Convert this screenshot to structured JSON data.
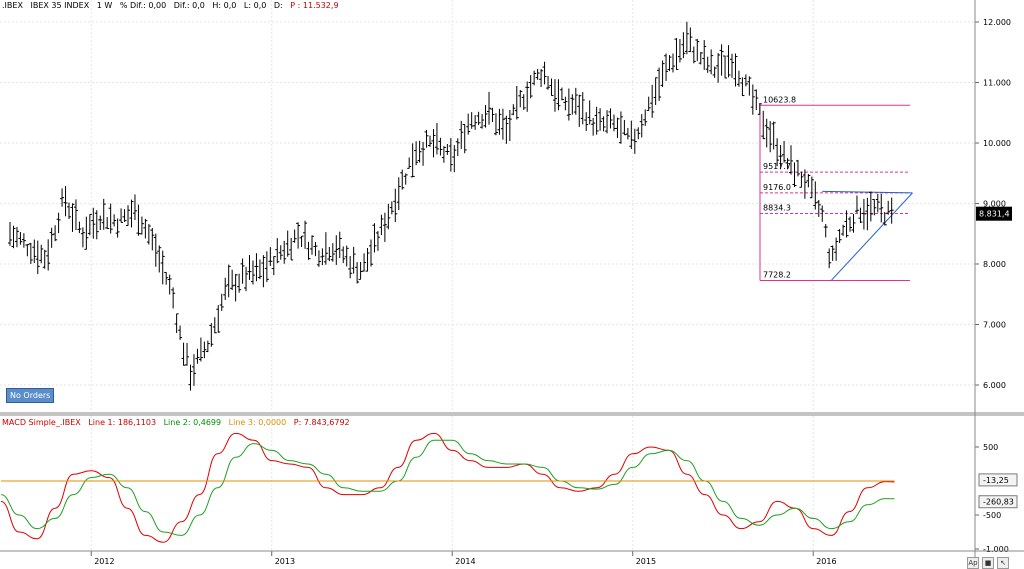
{
  "header": {
    "symbol": ".IBEX",
    "name": "IBEX 35 INDEX",
    "interval": "1 W",
    "pct_change": "% Dif.: 0,00",
    "change": "Dif.: 0,0",
    "high": "H: 0,0",
    "low": "L: 0,0",
    "close": "D:",
    "price": "P : 11.532,9"
  },
  "indicator_header": {
    "name": "MACD Simple_.IBEX",
    "line1": "Line 1: 186,1103",
    "line2": "Line 2: 0,4699",
    "line3": "Line 3: 0,0000",
    "price": "P: 7.843,6792"
  },
  "badge": {
    "no_orders": "No Orders"
  },
  "colors": {
    "price_bars": "#000000",
    "horizontal_levels": "#e0338e",
    "triangle_line": "#1f5fd6",
    "macd_line1": "#e00000",
    "macd_line2": "#20a020",
    "macd_line3": "#e08c00",
    "current_price_label_bg": "#000000"
  },
  "buttons": [
    "Ap",
    "save-icon",
    "pin-icon"
  ],
  "chart_data": [
    {
      "type": "ohlc",
      "title": "IBEX 35 INDEX",
      "ylim": [
        5500,
        12300
      ],
      "y_ticks": [
        "12.000",
        "11.000",
        "10.000",
        "9.000",
        "8.000",
        "7.000",
        "6.000"
      ],
      "x_ticks": [
        "2012",
        "2013",
        "2014",
        "2015",
        "2016"
      ],
      "current_price_label": "8.831,4",
      "levels": [
        {
          "label": "10623.8",
          "value": 10623.8,
          "style": "solid"
        },
        {
          "label": "9517.7",
          "value": 9517.7,
          "style": "dashed"
        },
        {
          "label": "9176.0",
          "value": 9176.0,
          "style": "dashed"
        },
        {
          "label": "8834.3",
          "value": 8834.3,
          "style": "dashed"
        },
        {
          "label": "7728.2",
          "value": 7728.2,
          "style": "solid"
        }
      ],
      "series": [
        {
          "x": [
            2011.55,
            2011.75,
            2011.85,
            2011.95,
            2012.05,
            2012.15,
            2012.25,
            2012.35,
            2012.45,
            2012.5,
            2012.55,
            2012.65,
            2012.75,
            2012.85,
            2012.95,
            2013.05,
            2013.15,
            2013.25,
            2013.35,
            2013.45,
            2013.5,
            2013.6,
            2013.7,
            2013.8,
            2013.9,
            2014.0,
            2014.1,
            2014.2,
            2014.3,
            2014.4,
            2014.5,
            2014.6,
            2014.7,
            2014.8,
            2014.9,
            2015.0,
            2015.1,
            2015.2,
            2015.3,
            2015.35,
            2015.45,
            2015.55,
            2015.65,
            2015.75,
            2015.85,
            2015.95,
            2016.05,
            2016.1,
            2016.15,
            2016.25,
            2016.35,
            2016.45
          ],
          "y": [
            8500,
            8100,
            9100,
            8500,
            8800,
            8700,
            8900,
            8300,
            7500,
            6700,
            6200,
            6700,
            7600,
            7800,
            7900,
            8200,
            8500,
            8200,
            8300,
            8000,
            7900,
            8500,
            9200,
            9900,
            10000,
            9700,
            10400,
            10500,
            10200,
            10800,
            11200,
            10700,
            10600,
            10300,
            10300,
            10000,
            10700,
            11300,
            11700,
            11500,
            11200,
            11400,
            10800,
            10200,
            9700,
            9400,
            8800,
            8000,
            8500,
            8900,
            8900,
            8800
          ]
        }
      ]
    },
    {
      "type": "line",
      "title": "MACD Simple_.IBEX",
      "ylim": [
        -1000,
        700
      ],
      "y_ticks": [
        "500",
        "-500",
        "-1.000"
      ],
      "value_labels": [
        "-13,25",
        "-260,83"
      ],
      "x_ticks": [
        "2012",
        "2013",
        "2014",
        "2015",
        "2016"
      ],
      "series": [
        {
          "name": "Line 1",
          "x": [
            2011.5,
            2011.6,
            2011.7,
            2011.8,
            2011.9,
            2012.0,
            2012.1,
            2012.2,
            2012.3,
            2012.4,
            2012.5,
            2012.6,
            2012.7,
            2012.8,
            2012.9,
            2013.0,
            2013.1,
            2013.2,
            2013.3,
            2013.4,
            2013.5,
            2013.6,
            2013.7,
            2013.8,
            2013.9,
            2014.0,
            2014.1,
            2014.2,
            2014.3,
            2014.4,
            2014.5,
            2014.6,
            2014.7,
            2014.8,
            2014.9,
            2015.0,
            2015.1,
            2015.2,
            2015.3,
            2015.4,
            2015.5,
            2015.6,
            2015.7,
            2015.8,
            2015.9,
            2016.0,
            2016.1,
            2016.2,
            2016.3,
            2016.4,
            2016.45
          ],
          "y": [
            -300,
            -750,
            -850,
            -400,
            100,
            150,
            50,
            -400,
            -800,
            -900,
            -600,
            -200,
            400,
            700,
            600,
            300,
            250,
            200,
            -100,
            -200,
            -200,
            -100,
            200,
            600,
            700,
            450,
            300,
            200,
            200,
            250,
            100,
            -100,
            -150,
            -100,
            100,
            400,
            500,
            450,
            100,
            -200,
            -500,
            -700,
            -600,
            -300,
            -400,
            -700,
            -800,
            -450,
            -100,
            -10,
            -13
          ]
        },
        {
          "name": "Line 2",
          "x": [
            2011.5,
            2011.6,
            2011.7,
            2011.8,
            2011.9,
            2012.0,
            2012.1,
            2012.2,
            2012.3,
            2012.4,
            2012.5,
            2012.6,
            2012.7,
            2012.8,
            2012.9,
            2013.0,
            2013.1,
            2013.2,
            2013.3,
            2013.4,
            2013.5,
            2013.6,
            2013.7,
            2013.8,
            2013.9,
            2014.0,
            2014.1,
            2014.2,
            2014.3,
            2014.4,
            2014.5,
            2014.6,
            2014.7,
            2014.8,
            2014.9,
            2015.0,
            2015.1,
            2015.2,
            2015.3,
            2015.4,
            2015.5,
            2015.6,
            2015.7,
            2015.8,
            2015.9,
            2016.0,
            2016.1,
            2016.2,
            2016.3,
            2016.4,
            2016.45
          ],
          "y": [
            -200,
            -500,
            -700,
            -550,
            -200,
            50,
            100,
            -100,
            -450,
            -750,
            -800,
            -500,
            -100,
            350,
            550,
            450,
            300,
            250,
            100,
            -100,
            -150,
            -150,
            0,
            350,
            600,
            600,
            400,
            300,
            250,
            250,
            200,
            0,
            -100,
            -120,
            -50,
            200,
            400,
            450,
            300,
            0,
            -300,
            -550,
            -650,
            -500,
            -400,
            -550,
            -700,
            -600,
            -350,
            -260,
            -261
          ]
        },
        {
          "name": "Line 3",
          "x": [
            2011.5,
            2016.45
          ],
          "y": [
            0,
            0
          ]
        }
      ]
    }
  ]
}
